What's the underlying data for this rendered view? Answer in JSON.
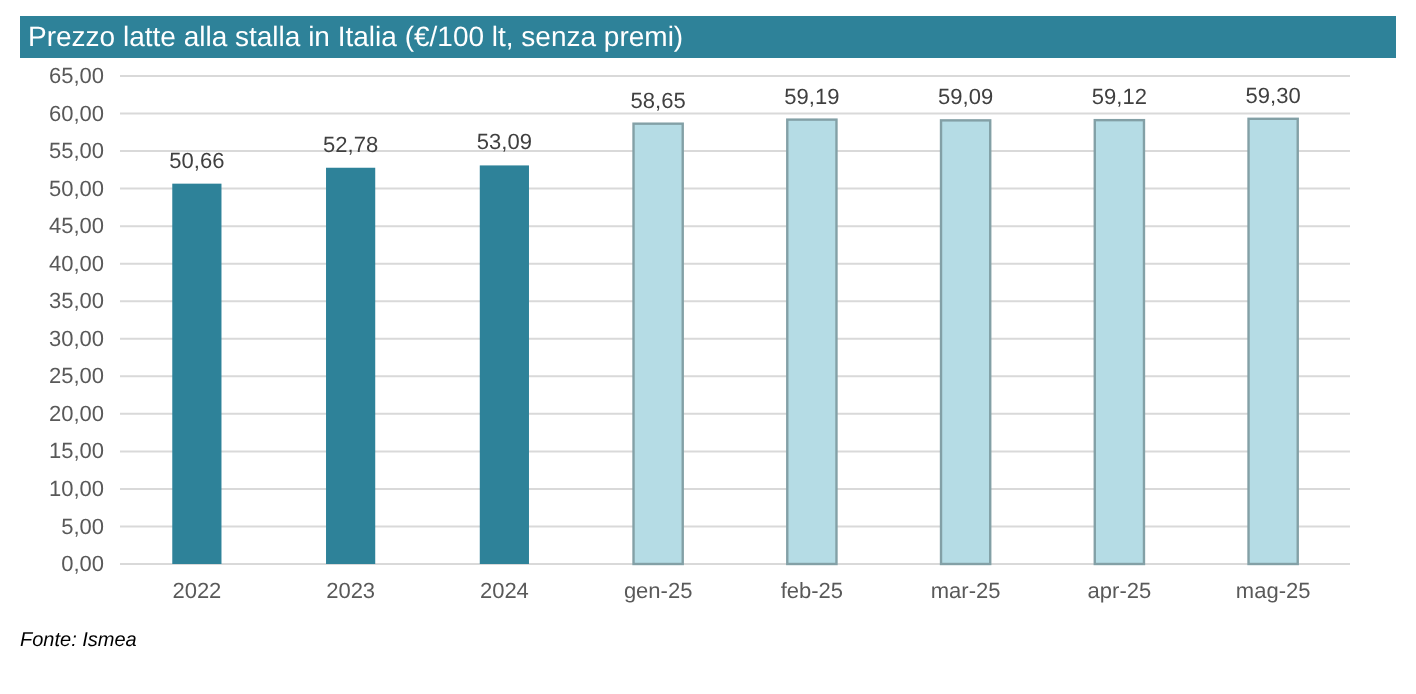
{
  "chart_data": {
    "type": "bar",
    "title": "Prezzo latte alla stalla in Italia (€/100 lt, senza premi)",
    "categories": [
      "2022",
      "2023",
      "2024",
      "gen-25",
      "feb-25",
      "mar-25",
      "apr-25",
      "mag-25"
    ],
    "values": [
      50.66,
      52.78,
      53.09,
      58.65,
      59.19,
      59.09,
      59.12,
      59.3
    ],
    "value_labels": [
      "50,66",
      "52,78",
      "53,09",
      "58,65",
      "59,19",
      "59,09",
      "59,12",
      "59,30"
    ],
    "colors": [
      "#2e8299",
      "#2e8299",
      "#2e8299",
      "#b5dce5",
      "#b5dce5",
      "#b5dce5",
      "#b5dce5",
      "#b5dce5"
    ],
    "ylim": [
      0,
      65
    ],
    "yticks": [
      {
        "value": 0,
        "label": "0,00"
      },
      {
        "value": 5,
        "label": "5,00"
      },
      {
        "value": 10,
        "label": "10,00"
      },
      {
        "value": 15,
        "label": "15,00"
      },
      {
        "value": 20,
        "label": "20,00"
      },
      {
        "value": 25,
        "label": "25,00"
      },
      {
        "value": 30,
        "label": "30,00"
      },
      {
        "value": 35,
        "label": "35,00"
      },
      {
        "value": 40,
        "label": "40,00"
      },
      {
        "value": 45,
        "label": "45,00"
      },
      {
        "value": 50,
        "label": "50,00"
      },
      {
        "value": 55,
        "label": "55,00"
      },
      {
        "value": 60,
        "label": "60,00"
      },
      {
        "value": 65,
        "label": "65,00"
      }
    ],
    "grid": "y",
    "annotations": [
      "Fonte: Ismea"
    ]
  }
}
